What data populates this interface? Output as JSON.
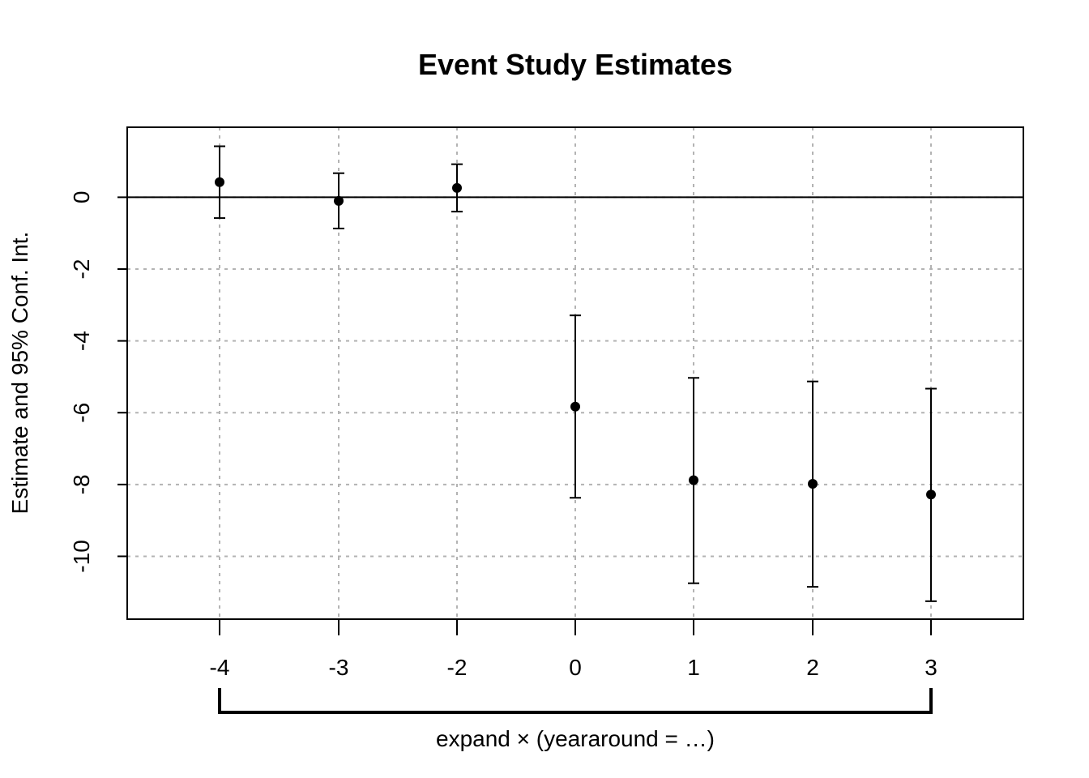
{
  "chart_data": {
    "type": "scatter",
    "title": "Event Study Estimates",
    "ylabel": "Estimate and 95% Conf. Int.",
    "xlabel": "expand × (yeararound = …)",
    "x_ticks": [
      "-4",
      "-3",
      "-2",
      "0",
      "1",
      "2",
      "3"
    ],
    "y_ticks": [
      0,
      -2,
      -4,
      -6,
      -8,
      -10
    ],
    "ylim": [
      -11.75,
      1.95
    ],
    "grid": true,
    "reference_line": 0,
    "points": [
      {
        "label": "-4",
        "estimate": 0.42,
        "ci_low": -0.58,
        "ci_high": 1.42
      },
      {
        "label": "-3",
        "estimate": -0.1,
        "ci_low": -0.87,
        "ci_high": 0.67
      },
      {
        "label": "-2",
        "estimate": 0.26,
        "ci_low": -0.4,
        "ci_high": 0.92
      },
      {
        "label": "0",
        "estimate": -5.83,
        "ci_low": -8.37,
        "ci_high": -3.29
      },
      {
        "label": "1",
        "estimate": -7.88,
        "ci_low": -10.75,
        "ci_high": -5.03
      },
      {
        "label": "2",
        "estimate": -7.98,
        "ci_low": -10.85,
        "ci_high": -5.13
      },
      {
        "label": "3",
        "estimate": -8.28,
        "ci_low": -11.25,
        "ci_high": -5.33
      }
    ],
    "colors": {
      "points": "#000000",
      "grid": "#b3b3b3",
      "axes": "#000000"
    }
  }
}
